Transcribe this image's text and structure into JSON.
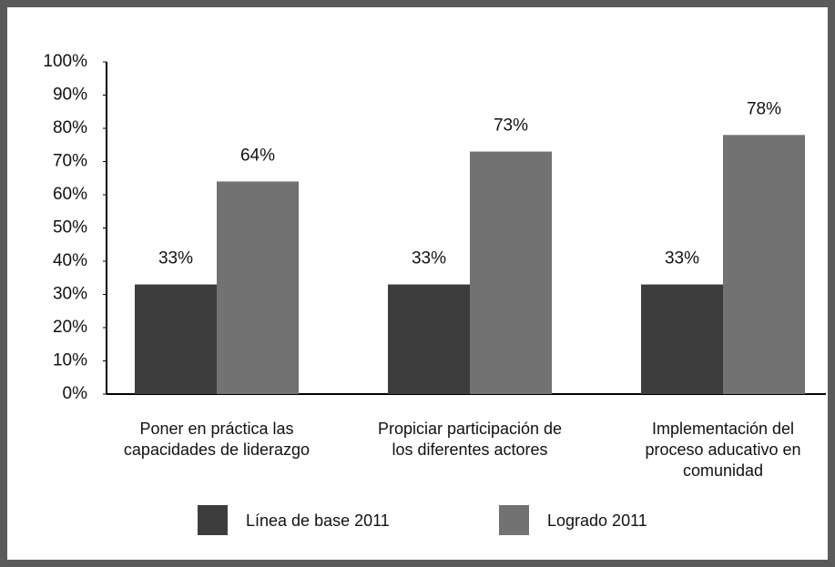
{
  "chart_data": {
    "type": "bar",
    "categories": [
      "Poner en práctica las\ncapacidades de liderazgo",
      "Propiciar participación de\nlos diferentes actores",
      "Implementación del\nproceso aducativo en\ncomunidad"
    ],
    "series": [
      {
        "name": "Línea de base 2011",
        "color": "#3d3d3d",
        "values": [
          33,
          33,
          33
        ],
        "value_labels": [
          "33%",
          "33%",
          "33%"
        ]
      },
      {
        "name": "Logrado 2011",
        "color": "#727272",
        "values": [
          64,
          73,
          78
        ],
        "value_labels": [
          "64%",
          "73%",
          "78%"
        ]
      }
    ],
    "ylim": [
      0,
      100
    ],
    "yticks": [
      {
        "value": 0,
        "label": "0%"
      },
      {
        "value": 10,
        "label": "10%"
      },
      {
        "value": 20,
        "label": "20%"
      },
      {
        "value": 30,
        "label": "30%"
      },
      {
        "value": 40,
        "label": "40%"
      },
      {
        "value": 50,
        "label": "50%"
      },
      {
        "value": 60,
        "label": "60%"
      },
      {
        "value": 70,
        "label": "70%"
      },
      {
        "value": 80,
        "label": "80%"
      },
      {
        "value": 90,
        "label": "90%"
      },
      {
        "value": 100,
        "label": "100%"
      }
    ],
    "grid": false,
    "legend": "bottom"
  }
}
